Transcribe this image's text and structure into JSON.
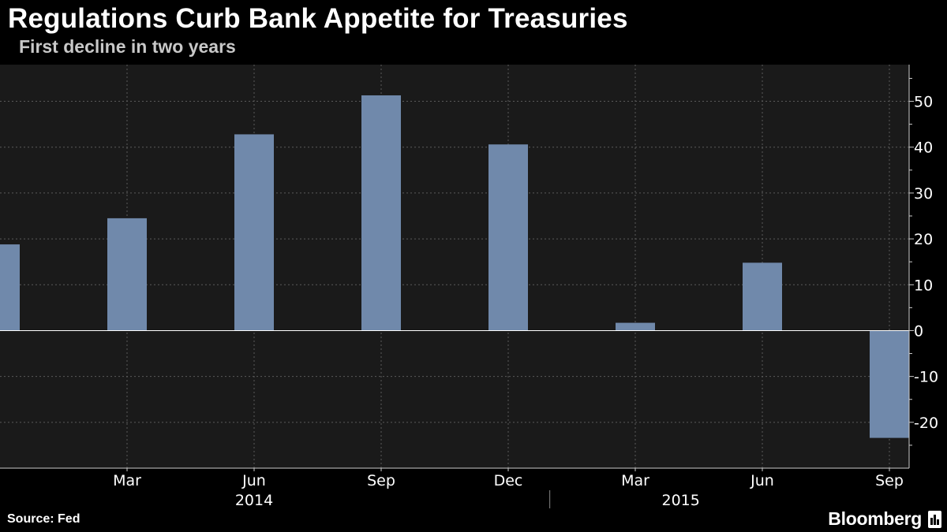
{
  "header": {
    "title": "Regulations Curb Bank Appetite for Treasuries",
    "subtitle": "First decline in two years"
  },
  "footer": {
    "source": "Source: Fed",
    "brand": "Bloomberg"
  },
  "colors": {
    "background": "#000000",
    "plot_background": "#1a1a1a",
    "bar": "#7089ab",
    "grid": "#5a5a5a",
    "axis": "#cccccc"
  },
  "chart_data": {
    "type": "bar",
    "title": "Regulations Curb Bank Appetite for Treasuries",
    "subtitle": "First decline in two years",
    "xlabel": "",
    "ylabel": "",
    "ylim": [
      -30,
      58
    ],
    "yticks": [
      -20,
      -10,
      0,
      10,
      20,
      30,
      40,
      50
    ],
    "y_axis_position": "right",
    "grid": true,
    "legend": "none",
    "categories": [
      "2013-12",
      "2014-03",
      "2014-06",
      "2014-09",
      "2014-12",
      "2015-03",
      "2015-06",
      "2015-09"
    ],
    "values": [
      18.8,
      24.5,
      42.8,
      51.3,
      40.6,
      1.7,
      14.8,
      -23.4
    ],
    "x_tick_labels": [
      "Mar",
      "Jun",
      "Sep",
      "Dec",
      "Mar",
      "Jun",
      "Sep"
    ],
    "x_tick_dates": [
      "2014-03",
      "2014-06",
      "2014-09",
      "2014-12",
      "2015-03",
      "2015-06",
      "2015-09"
    ],
    "x_year_labels": [
      {
        "label": "2014",
        "center": "2014-06"
      },
      {
        "label": "2015",
        "center": "2015-04"
      }
    ],
    "year_divider": "2015-01",
    "source": "Source: Fed"
  }
}
